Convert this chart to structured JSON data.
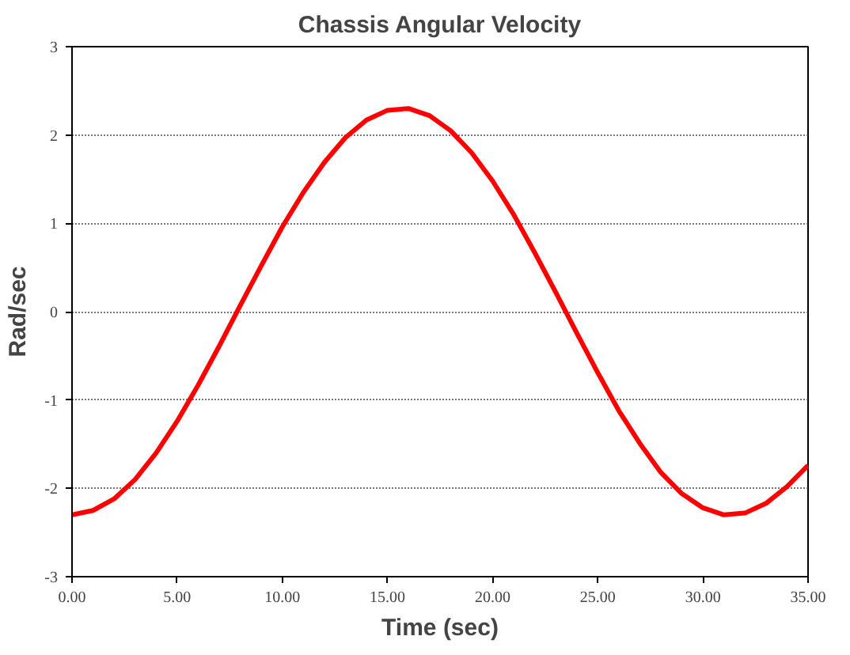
{
  "chart_data": {
    "type": "line",
    "title": "Chassis Angular Velocity",
    "xlabel": "Time (sec)",
    "ylabel": "Rad/sec",
    "x": [
      0,
      1,
      2,
      3,
      4,
      5,
      6,
      7,
      8,
      9,
      10,
      11,
      12,
      13,
      14,
      15,
      16,
      17,
      18,
      19,
      20,
      21,
      22,
      23,
      24,
      25,
      26,
      27,
      28,
      29,
      30,
      31,
      32,
      33,
      34,
      35
    ],
    "series": [
      {
        "color": "#ff0000",
        "values": [
          -2.3,
          -2.25,
          -2.12,
          -1.9,
          -1.6,
          -1.24,
          -0.83,
          -0.39,
          0.07,
          0.52,
          0.96,
          1.35,
          1.69,
          1.97,
          2.17,
          2.28,
          2.3,
          2.22,
          2.05,
          1.8,
          1.48,
          1.1,
          0.67,
          0.22,
          -0.24,
          -0.69,
          -1.12,
          -1.49,
          -1.82,
          -2.06,
          -2.22,
          -2.3,
          -2.28,
          -2.17,
          -1.98,
          -1.74
        ]
      }
    ],
    "xlim": [
      0,
      35
    ],
    "ylim": [
      -3,
      3
    ],
    "xticks": [
      {
        "value": 0,
        "label": "0.00"
      },
      {
        "value": 5,
        "label": "5.00"
      },
      {
        "value": 10,
        "label": "10.00"
      },
      {
        "value": 15,
        "label": "15.00"
      },
      {
        "value": 20,
        "label": "20.00"
      },
      {
        "value": 25,
        "label": "25.00"
      },
      {
        "value": 30,
        "label": "30.00"
      },
      {
        "value": 35,
        "label": "35.00"
      }
    ],
    "yticks": [
      -3,
      -2,
      -1,
      0,
      1,
      2,
      3
    ],
    "grid": "y",
    "marker": "none",
    "line_style": "solid"
  }
}
